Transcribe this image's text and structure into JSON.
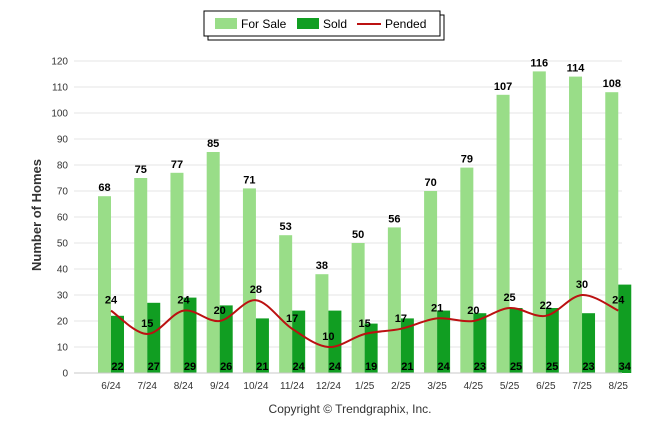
{
  "chart_data": {
    "type": "bar",
    "categories": [
      "6/24",
      "7/24",
      "8/24",
      "9/24",
      "10/24",
      "11/24",
      "12/24",
      "1/25",
      "2/25",
      "3/25",
      "4/25",
      "5/25",
      "6/25",
      "7/25",
      "8/25"
    ],
    "series": [
      {
        "name": "For Sale",
        "kind": "bar",
        "color": "#99dd88",
        "values": [
          68,
          75,
          77,
          85,
          71,
          53,
          38,
          50,
          56,
          70,
          79,
          107,
          116,
          114,
          108
        ]
      },
      {
        "name": "Sold",
        "kind": "bar",
        "color": "#119e22",
        "values": [
          22,
          27,
          29,
          26,
          21,
          24,
          24,
          19,
          21,
          24,
          23,
          25,
          25,
          23,
          34
        ]
      },
      {
        "name": "Pended",
        "kind": "line",
        "color": "#bb1111",
        "values": [
          24,
          15,
          24,
          20,
          28,
          17,
          10,
          15,
          17,
          21,
          20,
          25,
          22,
          30,
          24
        ]
      }
    ],
    "ylabel": "Number of Homes",
    "xlabel": "",
    "ylim": [
      0,
      120
    ],
    "yticks": [
      0,
      10,
      20,
      30,
      40,
      50,
      60,
      70,
      80,
      90,
      100,
      110,
      120
    ],
    "grid": true,
    "legend_position": "top-center"
  },
  "copyright": "Copyright © Trendgraphix, Inc."
}
